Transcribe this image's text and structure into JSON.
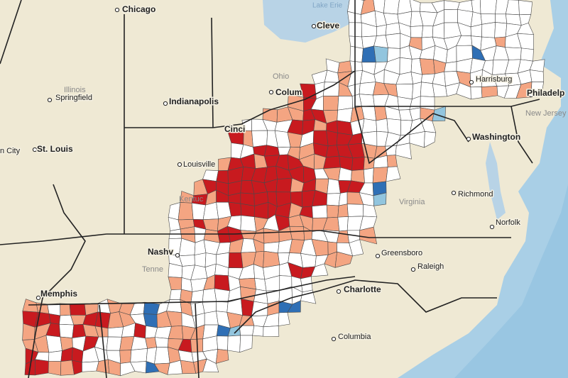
{
  "labels": [
    "Chicago",
    "Lake Erie",
    "Cleve",
    "Ohio",
    "Colum",
    "Illinois",
    "Springfield",
    "Indianapolis",
    "St. Louis",
    "n City",
    "Cinci",
    "Louisville",
    "Kentuc",
    "Harrisburg",
    "Philadelp",
    "New Jersey",
    "Washington",
    "Richmond",
    "Virginia",
    "Norfolk",
    "Nashv",
    "Tenne",
    "Memphis",
    "Greensboro",
    "Raleigh",
    "Charlotte",
    "Columbia"
  ]
}
